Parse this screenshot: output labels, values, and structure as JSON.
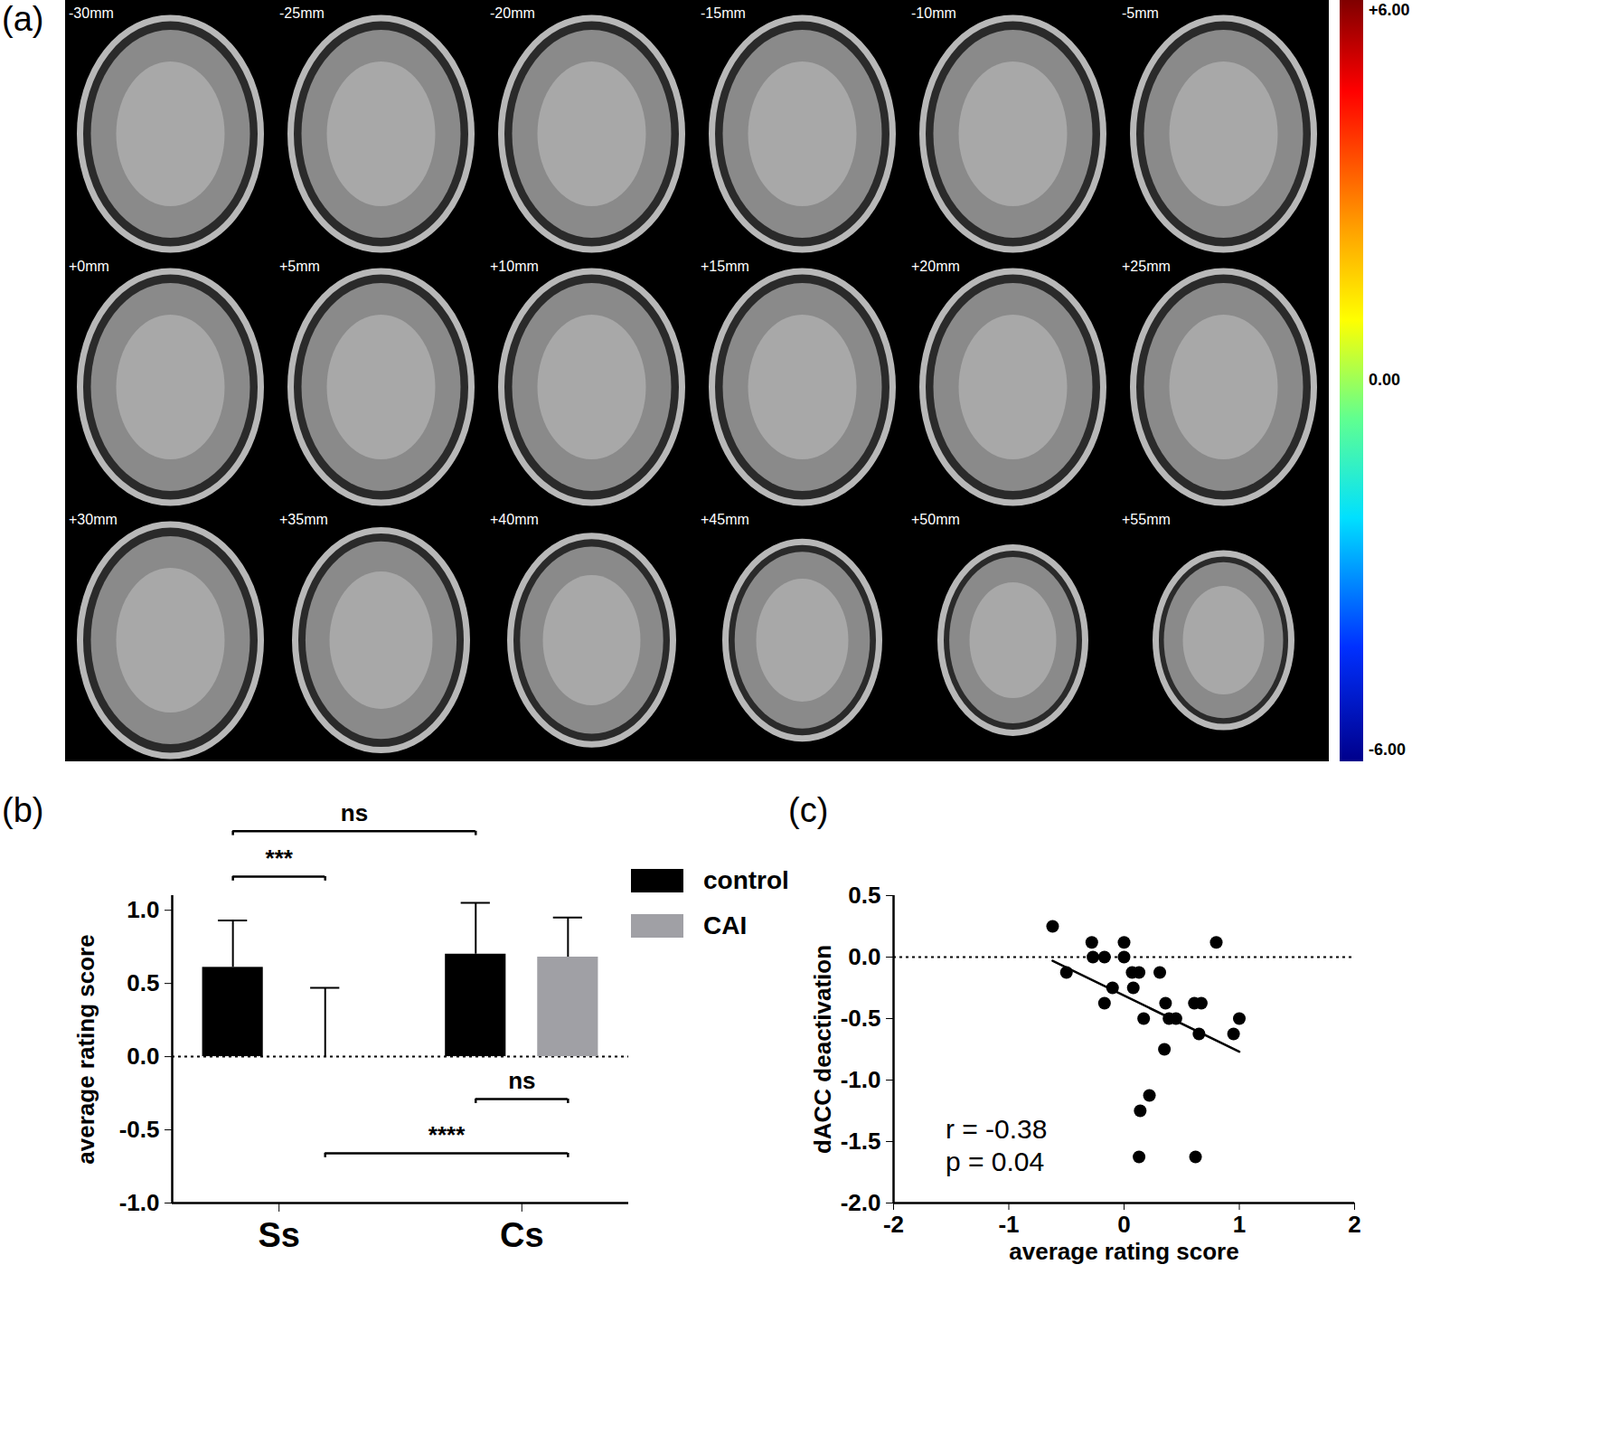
{
  "chart_data": [
    {
      "type": "brain_slices",
      "title": "(a)",
      "slices": [
        "-30mm",
        "-25mm",
        "-20mm",
        "-15mm",
        "-10mm",
        "-5mm",
        "+0mm",
        "+5mm",
        "+10mm",
        "+15mm",
        "+20mm",
        "+25mm",
        "+30mm",
        "+35mm",
        "+40mm",
        "+45mm",
        "+50mm",
        "+55mm"
      ],
      "colorbar": {
        "range": [
          -6,
          6
        ],
        "ticks": [
          {
            "value": 6,
            "label": "+6.00"
          },
          {
            "value": 0,
            "label": "0.00"
          },
          {
            "value": -6,
            "label": "-6.00"
          }
        ]
      }
    },
    {
      "type": "bar",
      "title": "(b)",
      "categories": [
        "Ss",
        "Cs"
      ],
      "series": [
        {
          "name": "control",
          "color": "#000000",
          "values": [
            0.61,
            0.7
          ],
          "errors": [
            0.32,
            0.35
          ]
        },
        {
          "name": "CAI",
          "color": "#a0a0a5",
          "values": [
            0.0,
            0.68
          ],
          "errors": [
            0.47,
            0.27
          ]
        }
      ],
      "ylabel": "average rating score",
      "ylim": [
        -1,
        1.1
      ],
      "yticks": [
        {
          "value": -1,
          "label": "-1.0"
        },
        {
          "value": -0.5,
          "label": "-0.5"
        },
        {
          "value": 0,
          "label": "0.0"
        },
        {
          "value": 0.5,
          "label": "0.5"
        },
        {
          "value": 1,
          "label": "1.0"
        }
      ],
      "reference_line": 0,
      "legend": "right",
      "comparisons": [
        {
          "from": {
            "category": "Ss",
            "series": "control"
          },
          "to": {
            "category": "Cs",
            "series": "control"
          },
          "y": 1.54,
          "label": "ns"
        },
        {
          "from": {
            "category": "Ss",
            "series": "control"
          },
          "to": {
            "category": "Ss",
            "series": "CAI"
          },
          "y": 1.23,
          "label": "***"
        },
        {
          "from": {
            "category": "Cs",
            "series": "control"
          },
          "to": {
            "category": "Cs",
            "series": "CAI"
          },
          "y": -0.29,
          "label": "ns"
        },
        {
          "from": {
            "category": "Ss",
            "series": "CAI"
          },
          "to": {
            "category": "Cs",
            "series": "CAI"
          },
          "y": -0.66,
          "label": "****"
        }
      ]
    },
    {
      "type": "scatter",
      "title": "(c)",
      "x": [
        -0.62,
        -0.5,
        -0.28,
        -0.27,
        -0.17,
        -0.17,
        -0.1,
        0.0,
        0.0,
        0.07,
        0.08,
        0.13,
        0.17,
        0.31,
        0.36,
        0.39,
        0.45,
        0.35,
        0.22,
        0.14,
        0.13,
        0.61,
        0.67,
        0.65,
        0.8,
        0.95,
        1.0,
        0.62
      ],
      "y": [
        0.25,
        -0.125,
        0.12,
        0.0,
        0.0,
        -0.375,
        -0.25,
        0.12,
        0.0,
        -0.125,
        -0.25,
        -0.125,
        -0.5,
        -0.125,
        -0.375,
        -0.5,
        -0.5,
        -0.75,
        -1.125,
        -1.25,
        -1.625,
        -0.375,
        -0.375,
        -0.625,
        0.12,
        -0.625,
        -0.5,
        -1.625
      ],
      "color": "#000000",
      "xlabel": "average rating score",
      "ylabel": "dACC deactivation",
      "xlim": [
        -2,
        2
      ],
      "xticks": [
        -2,
        -1,
        0,
        1,
        2
      ],
      "ylim": [
        -2,
        0.5
      ],
      "yticks": [
        {
          "value": -2,
          "label": "-2.0"
        },
        {
          "value": -1.5,
          "label": "-1.5"
        },
        {
          "value": -1,
          "label": "-1.0"
        },
        {
          "value": -0.5,
          "label": "-0.5"
        },
        {
          "value": 0,
          "label": "0.0"
        },
        {
          "value": 0.5,
          "label": "0.5"
        }
      ],
      "reference_line": 0,
      "fit": {
        "x": [
          -0.62,
          1.0
        ],
        "y": [
          -0.03,
          -0.77
        ]
      },
      "annotations": [
        {
          "text": "r = -0.38",
          "x": -1.55,
          "y": -1.4
        },
        {
          "text": "p = 0.04",
          "x": -1.55,
          "y": -1.67
        }
      ]
    }
  ]
}
